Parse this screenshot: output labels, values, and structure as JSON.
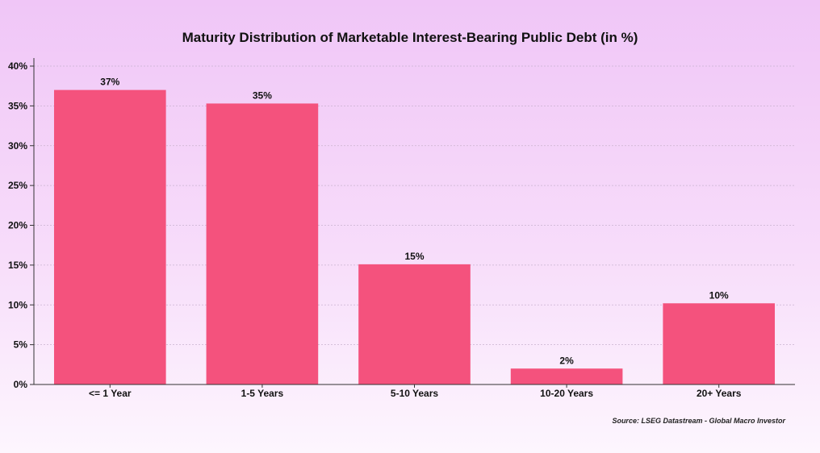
{
  "chart_data": {
    "type": "bar",
    "title": "Maturity Distribution of Marketable Interest-Bearing Public Debt (in %)",
    "categories": [
      "<= 1 Year",
      "1-5 Years",
      "5-10 Years",
      "10-20 Years",
      "20+ Years"
    ],
    "values": [
      37,
      35.3,
      15.1,
      2,
      10.2
    ],
    "data_labels": [
      "37%",
      "35%",
      "15%",
      "2%",
      "10%"
    ],
    "xlabel": "",
    "ylabel": "",
    "ylim": [
      0,
      40
    ],
    "yticks": [
      0,
      5,
      10,
      15,
      20,
      25,
      30,
      35,
      40
    ],
    "ytick_labels": [
      "0%",
      "5%",
      "10%",
      "15%",
      "20%",
      "25%",
      "30%",
      "35%",
      "40%"
    ],
    "grid": true,
    "bar_color": "#f4527d",
    "source": "Source: LSEG Datastream - Global Macro Investor"
  }
}
